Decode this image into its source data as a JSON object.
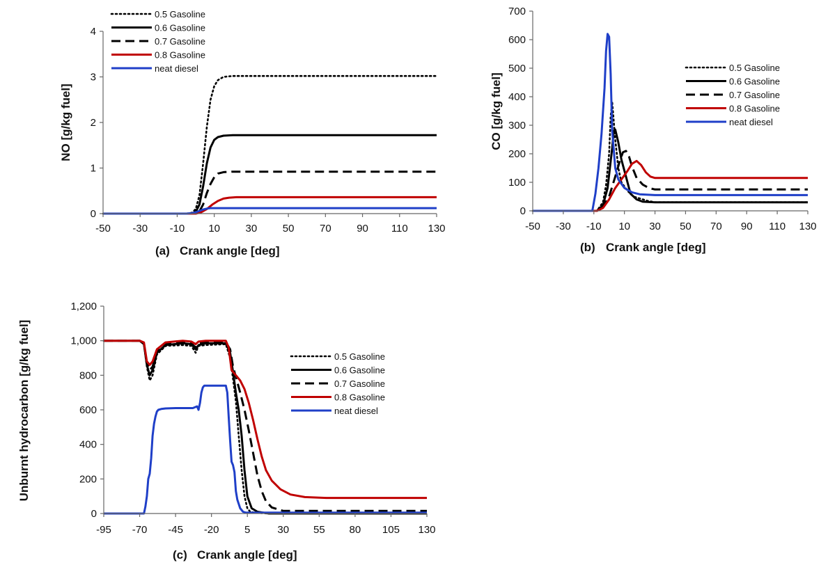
{
  "series_styles": [
    {
      "name": "0.5 Gasoline",
      "color": "#000000",
      "dash": "dot"
    },
    {
      "name": "0.6 Gasoline",
      "color": "#000000",
      "dash": "solid"
    },
    {
      "name": "0.7 Gasoline",
      "color": "#000000",
      "dash": "dash"
    },
    {
      "name": "0.8 Gasoline",
      "color": "#c00000",
      "dash": "solid"
    },
    {
      "name": "neat diesel",
      "color": "#1f3fc8",
      "dash": "solid"
    }
  ],
  "chart_data": [
    {
      "id": "a",
      "type": "line",
      "panel_label": "(a)",
      "xlabel": "Crank angle [deg]",
      "ylabel": "NO [g/kg fuel]",
      "xlim": [
        -50,
        130
      ],
      "ylim": [
        0,
        4
      ],
      "xticks": [
        -50,
        -30,
        -10,
        10,
        30,
        50,
        70,
        90,
        110,
        130
      ],
      "xtick_labels": [
        "-50",
        "-30",
        "-10",
        "10",
        "30",
        "50",
        "70",
        "90",
        "110",
        "130"
      ],
      "yticks": [
        0,
        1,
        2,
        3,
        4
      ],
      "ytick_labels": [
        "0",
        "1",
        "2",
        "3",
        "4"
      ],
      "legend_position": "top-left",
      "series": [
        {
          "name": "0.5 Gasoline",
          "x": [
            -50,
            -5,
            -2,
            0,
            2,
            4,
            6,
            8,
            10,
            12,
            15,
            20,
            30,
            130
          ],
          "y": [
            0,
            0,
            0.02,
            0.1,
            0.4,
            1.1,
            1.9,
            2.5,
            2.8,
            2.93,
            3.0,
            3.02,
            3.02,
            3.02
          ]
        },
        {
          "name": "0.6 Gasoline",
          "x": [
            -50,
            -2,
            0,
            2,
            4,
            6,
            8,
            10,
            12,
            15,
            20,
            130
          ],
          "y": [
            0,
            0,
            0.04,
            0.2,
            0.6,
            1.1,
            1.45,
            1.62,
            1.68,
            1.71,
            1.72,
            1.72
          ]
        },
        {
          "name": "0.7 Gasoline",
          "x": [
            -50,
            0,
            2,
            4,
            6,
            8,
            10,
            12,
            15,
            20,
            130
          ],
          "y": [
            0,
            0,
            0.05,
            0.2,
            0.45,
            0.65,
            0.8,
            0.88,
            0.91,
            0.92,
            0.92
          ]
        },
        {
          "name": "0.8 Gasoline",
          "x": [
            -50,
            0,
            3,
            6,
            9,
            12,
            15,
            18,
            22,
            130
          ],
          "y": [
            0,
            0,
            0.03,
            0.1,
            0.2,
            0.28,
            0.33,
            0.35,
            0.36,
            0.36
          ]
        },
        {
          "name": "neat diesel",
          "x": [
            -50,
            -5,
            -2,
            0,
            2,
            4,
            6,
            8,
            10,
            130
          ],
          "y": [
            0,
            0,
            0.01,
            0.03,
            0.06,
            0.09,
            0.11,
            0.12,
            0.12,
            0.12
          ]
        }
      ]
    },
    {
      "id": "b",
      "type": "line",
      "panel_label": "(b)",
      "xlabel": "Crank angle [deg]",
      "ylabel": "CO [g/kg fuel]",
      "xlim": [
        -50,
        130
      ],
      "ylim": [
        0,
        700
      ],
      "xticks": [
        -50,
        -30,
        -10,
        10,
        30,
        50,
        70,
        90,
        110,
        130
      ],
      "xtick_labels": [
        "-50",
        "-30",
        "-10",
        "10",
        "30",
        "50",
        "70",
        "90",
        "110",
        "130"
      ],
      "yticks": [
        0,
        100,
        200,
        300,
        400,
        500,
        600,
        700
      ],
      "ytick_labels": [
        "0",
        "100",
        "200",
        "300",
        "400",
        "500",
        "600",
        "700"
      ],
      "legend_position": "top-right",
      "series": [
        {
          "name": "0.5 Gasoline",
          "x": [
            -50,
            -8,
            -4,
            -2,
            0,
            1,
            2,
            4,
            6,
            8,
            12,
            16,
            25,
            30,
            130
          ],
          "y": [
            0,
            0,
            30,
            90,
            200,
            330,
            380,
            250,
            150,
            100,
            70,
            50,
            35,
            30,
            30
          ]
        },
        {
          "name": "0.6 Gasoline",
          "x": [
            -50,
            -8,
            -4,
            -1,
            2,
            3,
            4,
            6,
            8,
            11,
            14,
            18,
            22,
            30,
            130
          ],
          "y": [
            0,
            0,
            20,
            80,
            220,
            280,
            285,
            240,
            180,
            120,
            60,
            40,
            32,
            30,
            30
          ]
        },
        {
          "name": "0.7 Gasoline",
          "x": [
            -50,
            -8,
            -4,
            0,
            4,
            7,
            9,
            11,
            13,
            15,
            18,
            22,
            26,
            30,
            130
          ],
          "y": [
            0,
            0,
            15,
            50,
            120,
            175,
            205,
            210,
            190,
            155,
            115,
            92,
            80,
            75,
            75
          ]
        },
        {
          "name": "0.8 Gasoline",
          "x": [
            -50,
            -8,
            -4,
            0,
            4,
            8,
            12,
            15,
            18,
            21,
            24,
            27,
            30,
            130
          ],
          "y": [
            0,
            0,
            10,
            40,
            80,
            110,
            140,
            165,
            175,
            160,
            135,
            120,
            115,
            115
          ]
        },
        {
          "name": "neat diesel",
          "x": [
            -50,
            -11,
            -9,
            -7,
            -5,
            -3,
            -2,
            -1,
            0,
            1,
            2,
            4,
            6,
            10,
            15,
            20,
            30,
            130
          ],
          "y": [
            0,
            0,
            60,
            150,
            270,
            430,
            560,
            620,
            610,
            480,
            280,
            150,
            110,
            80,
            65,
            58,
            55,
            55
          ]
        }
      ]
    },
    {
      "id": "c",
      "type": "line",
      "panel_label": "(c)",
      "xlabel": "Crank angle [deg]",
      "ylabel": "Unburnt hydrocarbon [g/kg fuel]",
      "xlim": [
        -95,
        130
      ],
      "ylim": [
        0,
        1200
      ],
      "xticks": [
        -95,
        -70,
        -45,
        -20,
        5,
        30,
        55,
        80,
        105,
        130
      ],
      "xtick_labels": [
        "-95",
        "-70",
        "-45",
        "-20",
        "5",
        "30",
        "55",
        "80",
        "105",
        "130"
      ],
      "yticks": [
        0,
        200,
        400,
        600,
        800,
        1000,
        1200
      ],
      "ytick_labels": [
        "0",
        "200",
        "400",
        "600",
        "800",
        "1,000",
        "1,200"
      ],
      "legend_position": "center-right",
      "series": [
        {
          "name": "0.5 Gasoline",
          "x": [
            -95,
            -70,
            -67,
            -65,
            -63,
            -61,
            -58,
            -52,
            -40,
            -34,
            -31,
            -29,
            -24,
            -10,
            -7,
            -5,
            -3,
            -1,
            1,
            3,
            5,
            7,
            10,
            20,
            130
          ],
          "y": [
            1000,
            1000,
            980,
            850,
            770,
            800,
            920,
            970,
            975,
            970,
            930,
            970,
            975,
            980,
            900,
            780,
            650,
            450,
            250,
            100,
            30,
            10,
            5,
            0,
            0
          ]
        },
        {
          "name": "0.6 Gasoline",
          "x": [
            -95,
            -70,
            -67,
            -65,
            -63,
            -61,
            -58,
            -52,
            -40,
            -34,
            -31,
            -29,
            -24,
            -10,
            -7,
            -5,
            -3,
            -1,
            1,
            3,
            5,
            8,
            12,
            20,
            130
          ],
          "y": [
            1000,
            1000,
            980,
            860,
            800,
            830,
            930,
            975,
            985,
            980,
            950,
            975,
            985,
            985,
            930,
            820,
            700,
            600,
            450,
            250,
            100,
            30,
            10,
            0,
            0
          ]
        },
        {
          "name": "0.7 Gasoline",
          "x": [
            -95,
            -70,
            -67,
            -65,
            -63,
            -61,
            -58,
            -52,
            -40,
            -34,
            -31,
            -29,
            -24,
            -10,
            -7,
            -5,
            -2,
            0,
            3,
            6,
            9,
            12,
            15,
            18,
            22,
            30,
            130
          ],
          "y": [
            1000,
            1000,
            985,
            870,
            830,
            850,
            940,
            985,
            990,
            985,
            960,
            985,
            990,
            990,
            950,
            850,
            760,
            700,
            600,
            480,
            350,
            220,
            130,
            70,
            35,
            15,
            15
          ]
        },
        {
          "name": "0.8 Gasoline",
          "x": [
            -95,
            -70,
            -67,
            -65,
            -63,
            -61,
            -58,
            -52,
            -40,
            -34,
            -31,
            -29,
            -24,
            -10,
            -8,
            -6,
            -3,
            0,
            3,
            6,
            9,
            12,
            15,
            18,
            22,
            28,
            35,
            45,
            60,
            130
          ],
          "y": [
            1000,
            1000,
            990,
            880,
            860,
            880,
            950,
            990,
            1000,
            995,
            980,
            995,
            1000,
            1000,
            960,
            830,
            800,
            770,
            720,
            640,
            540,
            430,
            330,
            250,
            190,
            140,
            110,
            95,
            90,
            90
          ]
        },
        {
          "name": "neat diesel",
          "x": [
            -95,
            -67,
            -66,
            -65,
            -64,
            -63,
            -62,
            -61,
            -60,
            -59,
            -58,
            -57,
            -55,
            -52,
            -45,
            -33,
            -30,
            -29,
            -28,
            -27,
            -26,
            -25,
            -24,
            -20,
            -10,
            -9,
            -8,
            -7,
            -6,
            -5,
            -4,
            -3,
            -2,
            0,
            2,
            4,
            130
          ],
          "y": [
            0,
            0,
            40,
            100,
            200,
            230,
            320,
            450,
            520,
            560,
            590,
            600,
            605,
            608,
            610,
            610,
            620,
            600,
            640,
            700,
            730,
            740,
            740,
            740,
            740,
            700,
            560,
            420,
            300,
            280,
            240,
            130,
            80,
            30,
            10,
            5,
            5
          ]
        }
      ]
    }
  ]
}
